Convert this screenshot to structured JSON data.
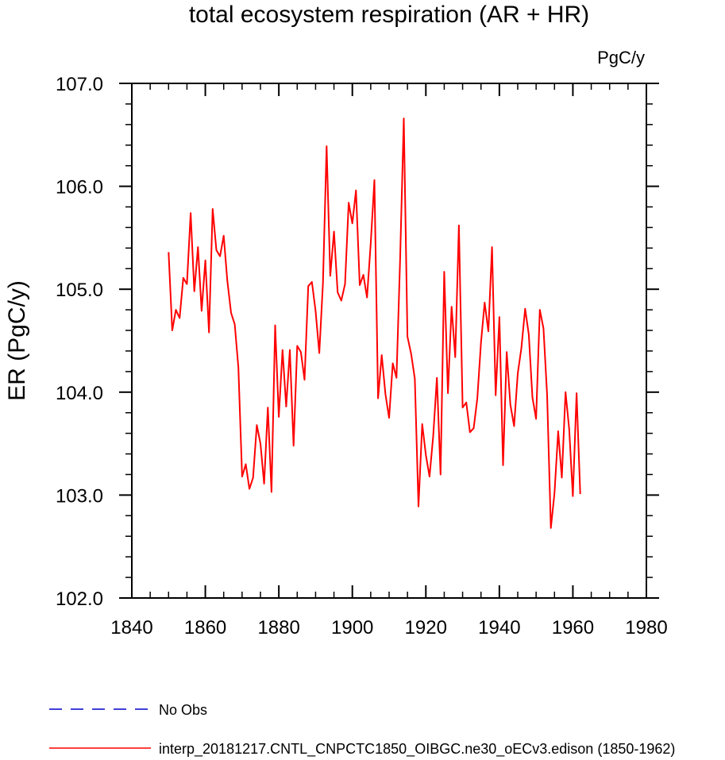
{
  "chart_data": {
    "type": "line",
    "title": "total ecosystem respiration (AR + HR)",
    "units_label": "PgC/y",
    "xlabel": "",
    "ylabel": "ER  (PgC/y)",
    "xlim": [
      1840,
      1980
    ],
    "ylim": [
      102.0,
      107.0
    ],
    "x_ticks": [
      1840,
      1860,
      1880,
      1900,
      1920,
      1940,
      1960,
      1980
    ],
    "x_tick_labels": [
      "1840",
      "1860",
      "1880",
      "1900",
      "1920",
      "1940",
      "1960",
      "1980"
    ],
    "y_ticks": [
      102.0,
      103.0,
      104.0,
      105.0,
      106.0,
      107.0
    ],
    "y_tick_labels": [
      "102.0",
      "103.0",
      "104.0",
      "105.0",
      "106.0",
      "107.0"
    ],
    "grid": false,
    "legend_position": "bottom",
    "series": [
      {
        "name": "No Obs",
        "color": "#0000cc",
        "style": "dashed",
        "x": [],
        "values": []
      },
      {
        "name": "interp_20181217.CNTL_CNPCTC1850_OIBGC.ne30_oECv3.edison (1850-1962)",
        "color": "#ff0000",
        "style": "solid",
        "x": [
          1850,
          1851,
          1852,
          1853,
          1854,
          1855,
          1856,
          1857,
          1858,
          1859,
          1860,
          1861,
          1862,
          1863,
          1864,
          1865,
          1866,
          1867,
          1868,
          1869,
          1870,
          1871,
          1872,
          1873,
          1874,
          1875,
          1876,
          1877,
          1878,
          1879,
          1880,
          1881,
          1882,
          1883,
          1884,
          1885,
          1886,
          1887,
          1888,
          1889,
          1890,
          1891,
          1892,
          1893,
          1894,
          1895,
          1896,
          1897,
          1898,
          1899,
          1900,
          1901,
          1902,
          1903,
          1904,
          1905,
          1906,
          1907,
          1908,
          1909,
          1910,
          1911,
          1912,
          1913,
          1914,
          1915,
          1916,
          1917,
          1918,
          1919,
          1920,
          1921,
          1922,
          1923,
          1924,
          1925,
          1926,
          1927,
          1928,
          1929,
          1930,
          1931,
          1932,
          1933,
          1934,
          1935,
          1936,
          1937,
          1938,
          1939,
          1940,
          1941,
          1942,
          1943,
          1944,
          1945,
          1946,
          1947,
          1948,
          1949,
          1950,
          1951,
          1952,
          1953,
          1954,
          1955,
          1956,
          1957,
          1958,
          1959,
          1960,
          1961,
          1962
        ],
        "values": [
          105.36,
          104.6,
          104.8,
          104.72,
          105.11,
          105.05,
          105.74,
          104.98,
          105.41,
          104.79,
          105.28,
          104.58,
          105.78,
          105.38,
          105.32,
          105.52,
          105.08,
          104.77,
          104.66,
          104.24,
          103.18,
          103.3,
          103.06,
          103.17,
          103.68,
          103.5,
          103.11,
          103.85,
          103.03,
          104.65,
          103.76,
          104.41,
          103.86,
          104.41,
          103.48,
          104.45,
          104.39,
          104.12,
          105.03,
          105.07,
          104.79,
          104.38,
          105.06,
          106.39,
          105.13,
          105.56,
          104.97,
          104.89,
          105.05,
          105.84,
          105.64,
          105.96,
          105.04,
          105.14,
          104.92,
          105.45,
          106.06,
          103.94,
          104.36,
          103.98,
          103.75,
          104.28,
          104.14,
          105.3,
          106.66,
          104.54,
          104.37,
          104.13,
          102.89,
          103.69,
          103.39,
          103.18,
          103.57,
          104.14,
          103.2,
          105.17,
          103.99,
          104.83,
          104.34,
          105.62,
          103.85,
          103.9,
          103.61,
          103.65,
          103.94,
          104.48,
          104.87,
          104.59,
          105.41,
          103.97,
          104.73,
          103.29,
          104.39,
          103.88,
          103.67,
          104.18,
          104.43,
          104.81,
          104.56,
          103.95,
          103.74,
          104.8,
          104.62,
          103.97,
          102.68,
          103.02,
          103.62,
          103.17,
          104.0,
          103.64,
          102.99,
          103.99,
          103.01
        ]
      }
    ]
  }
}
